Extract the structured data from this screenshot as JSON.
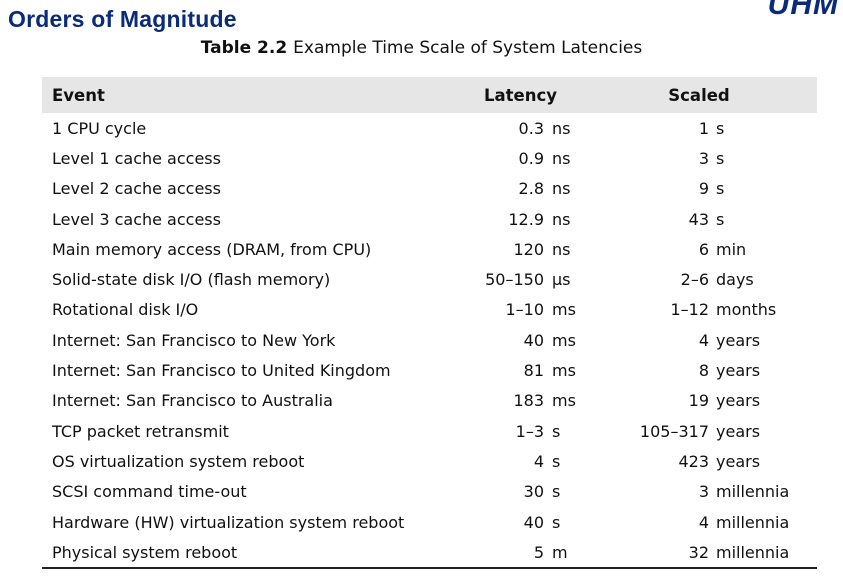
{
  "slide": {
    "title": "Orders of Magnitude",
    "logo": "UHM"
  },
  "table": {
    "caption_number": "Table 2.2",
    "caption_text": "Example Time Scale of System Latencies",
    "headers": {
      "event": "Event",
      "latency": "Latency",
      "scaled": "Scaled"
    },
    "rows": [
      {
        "event": "1 CPU cycle",
        "latency_value": "0.3",
        "latency_unit": "ns",
        "scaled_value": "1",
        "scaled_unit": "s"
      },
      {
        "event": "Level 1 cache access",
        "latency_value": "0.9",
        "latency_unit": "ns",
        "scaled_value": "3",
        "scaled_unit": "s"
      },
      {
        "event": "Level 2 cache access",
        "latency_value": "2.8",
        "latency_unit": "ns",
        "scaled_value": "9",
        "scaled_unit": "s"
      },
      {
        "event": "Level 3 cache access",
        "latency_value": "12.9",
        "latency_unit": "ns",
        "scaled_value": "43",
        "scaled_unit": "s"
      },
      {
        "event": "Main memory access (DRAM, from CPU)",
        "latency_value": "120",
        "latency_unit": "ns",
        "scaled_value": "6",
        "scaled_unit": "min"
      },
      {
        "event": "Solid-state disk I/O (flash memory)",
        "latency_value": "50–150",
        "latency_unit": "μs",
        "scaled_value": "2–6",
        "scaled_unit": "days"
      },
      {
        "event": "Rotational disk I/O",
        "latency_value": "1–10",
        "latency_unit": "ms",
        "scaled_value": "1–12",
        "scaled_unit": "months"
      },
      {
        "event": "Internet: San Francisco to New York",
        "latency_value": "40",
        "latency_unit": "ms",
        "scaled_value": "4",
        "scaled_unit": "years"
      },
      {
        "event": "Internet: San Francisco to United Kingdom",
        "latency_value": "81",
        "latency_unit": "ms",
        "scaled_value": "8",
        "scaled_unit": "years"
      },
      {
        "event": "Internet: San Francisco to Australia",
        "latency_value": "183",
        "latency_unit": "ms",
        "scaled_value": "19",
        "scaled_unit": "years"
      },
      {
        "event": "TCP packet retransmit",
        "latency_value": "1–3",
        "latency_unit": "s",
        "scaled_value": "105–317",
        "scaled_unit": "years"
      },
      {
        "event": "OS virtualization system reboot",
        "latency_value": "4",
        "latency_unit": "s",
        "scaled_value": "423",
        "scaled_unit": "years"
      },
      {
        "event": "SCSI command time-out",
        "latency_value": "30",
        "latency_unit": "s",
        "scaled_value": "3",
        "scaled_unit": "millennia"
      },
      {
        "event": "Hardware (HW) virtualization system reboot",
        "latency_value": "40",
        "latency_unit": "s",
        "scaled_value": "4",
        "scaled_unit": "millennia"
      },
      {
        "event": "Physical system reboot",
        "latency_value": "5",
        "latency_unit": "m",
        "scaled_value": "32",
        "scaled_unit": "millennia"
      }
    ]
  }
}
